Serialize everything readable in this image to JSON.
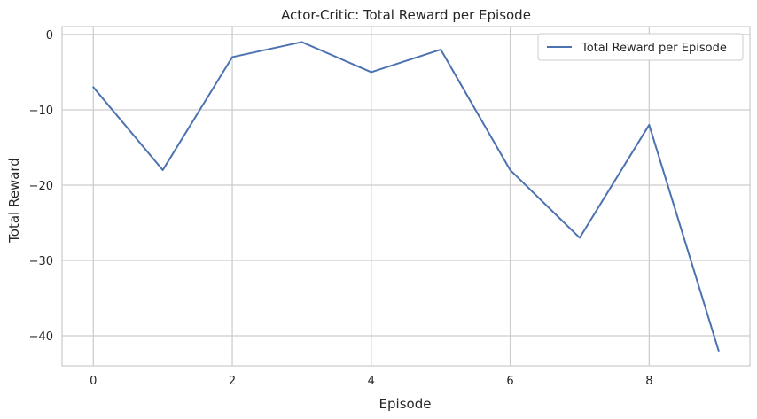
{
  "chart_data": {
    "type": "line",
    "title": "Actor-Critic: Total Reward per Episode",
    "xlabel": "Episode",
    "ylabel": "Total Reward",
    "x": [
      0,
      1,
      2,
      3,
      4,
      5,
      6,
      7,
      8,
      9
    ],
    "series": [
      {
        "name": "Total Reward per Episode",
        "values": [
          -7,
          -18,
          -3,
          -1,
          -5,
          -2,
          -18,
          -27,
          -12,
          -42
        ],
        "color": "#4c72b0"
      }
    ],
    "xlim": [
      -0.45,
      9.45
    ],
    "ylim": [
      -44,
      1.05
    ],
    "xticks": [
      0,
      2,
      4,
      6,
      8
    ],
    "yticks": [
      0,
      -10,
      -20,
      -30,
      -40
    ],
    "xtick_labels": [
      "0",
      "2",
      "4",
      "6",
      "8"
    ],
    "ytick_labels": [
      "0",
      "−10",
      "−20",
      "−30",
      "−40"
    ],
    "grid": true,
    "legend_position": "top-right",
    "colors": {
      "grid": "#cccccc",
      "spine": "#cccccc",
      "text": "#262626"
    }
  }
}
